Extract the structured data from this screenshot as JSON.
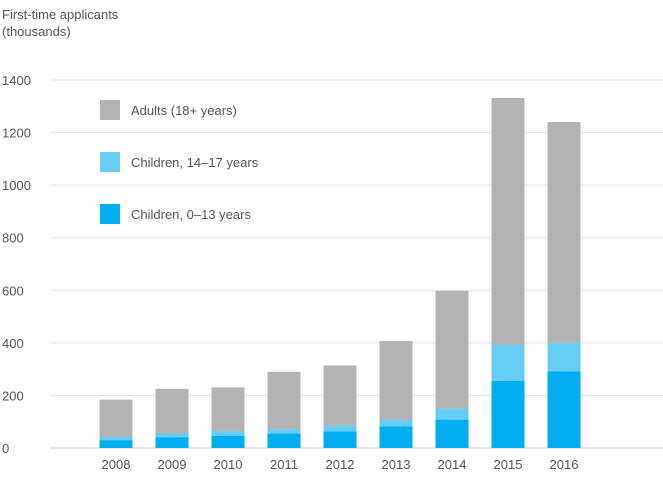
{
  "chart_data": {
    "type": "bar",
    "stacked": true,
    "ylabel_lines": [
      "First-time applicants",
      "(thousands)"
    ],
    "xlabel": "",
    "categories": [
      "2008",
      "2009",
      "2010",
      "2011",
      "2012",
      "2013",
      "2014",
      "2015",
      "2016"
    ],
    "series": [
      {
        "name": "Children, 0–13 years",
        "color": "#00aeef",
        "values": [
          30,
          40,
          47,
          55,
          63,
          83,
          108,
          255,
          292
        ]
      },
      {
        "name": "Children, 14–17 years",
        "color": "#66cdf5",
        "values": [
          12,
          15,
          18,
          17,
          23,
          25,
          42,
          137,
          108
        ]
      },
      {
        "name": "Adults (18+ years)",
        "color": "#b3b3b3",
        "values": [
          142,
          170,
          165,
          218,
          228,
          299,
          448,
          940,
          840
        ]
      }
    ],
    "yticks": [
      "0",
      "200",
      "400",
      "600",
      "800",
      "1000",
      "1200",
      "1400"
    ],
    "ylim": [
      0,
      1400
    ],
    "grid": true,
    "legend_order": [
      "Adults (18+ years)",
      "Children, 14–17 years",
      "Children, 0–13 years"
    ],
    "legend_position": "top-left"
  }
}
